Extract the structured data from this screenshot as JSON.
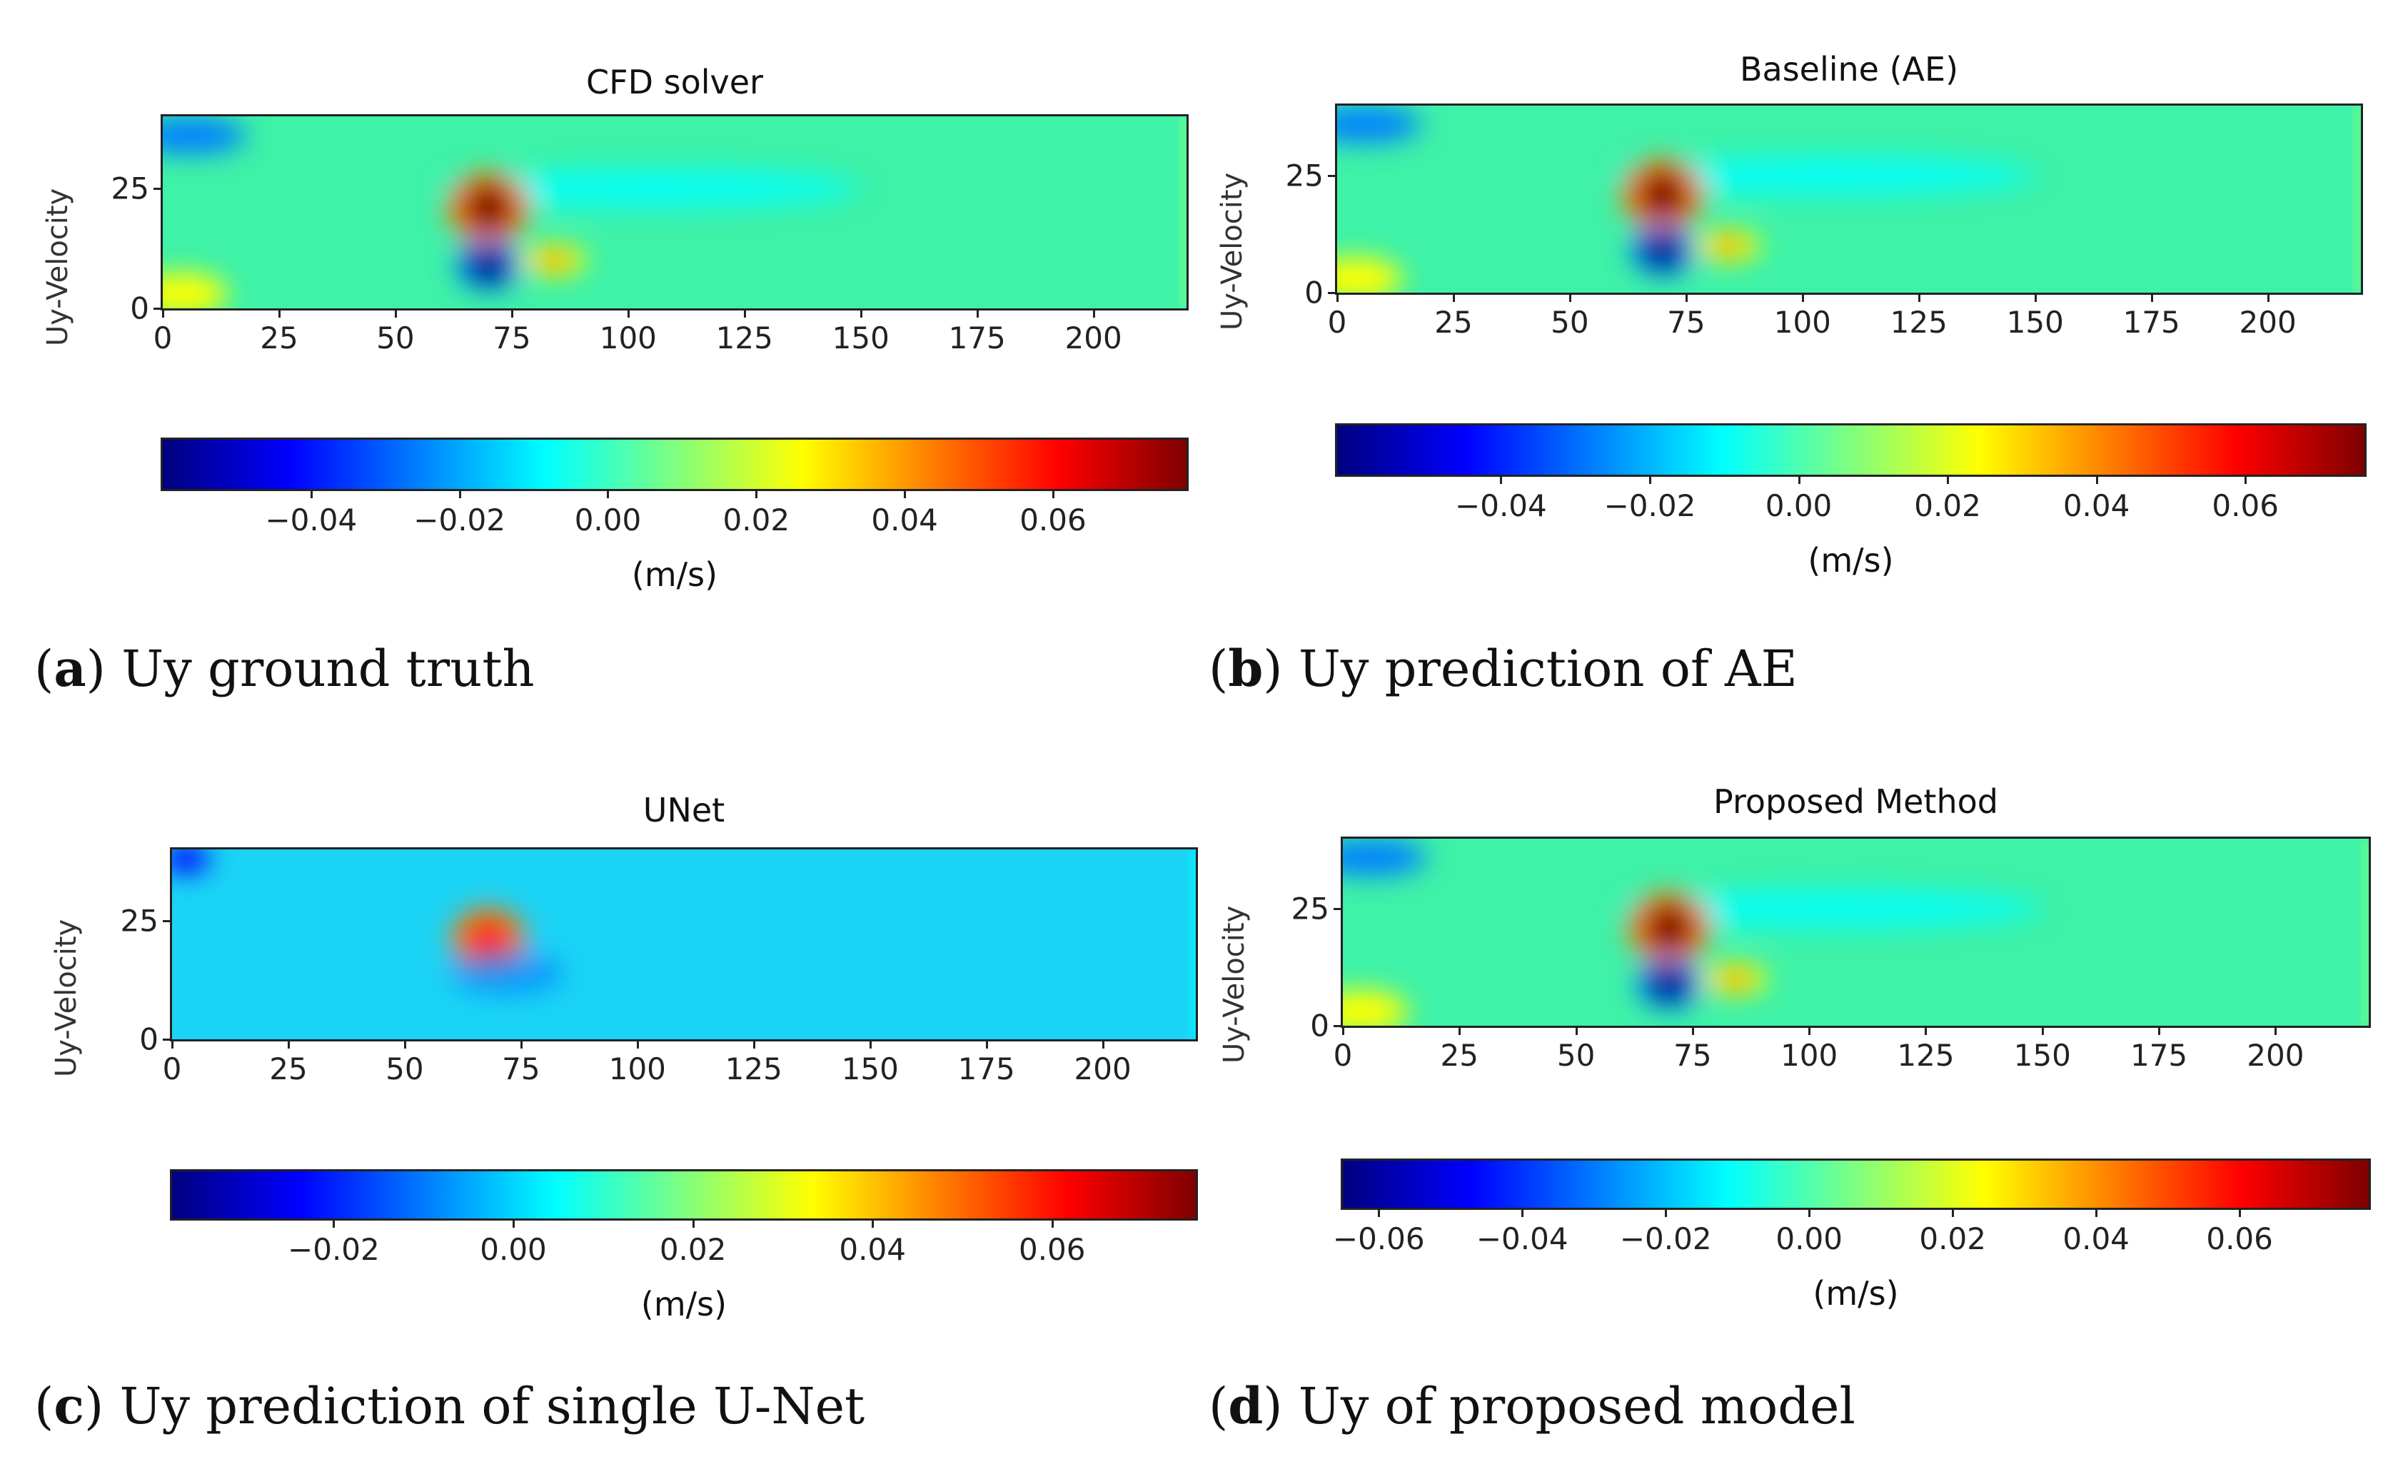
{
  "colors": {
    "jet": [
      "#00007f",
      "#0000ff",
      "#007fff",
      "#00ffff",
      "#7fff7f",
      "#ffff00",
      "#ff7f00",
      "#ff0000",
      "#7f0000"
    ],
    "field_background": "#3ef2a8",
    "unet_background": "#1ad3f5"
  },
  "panels": [
    {
      "id": "a",
      "caption_letter": "a",
      "caption_text": " Uy ground truth",
      "chart_data": {
        "type": "heatmap",
        "title": "CFD solver",
        "ylabel": "Uy-Velocity",
        "xlim": [
          0,
          220
        ],
        "ylim": [
          0,
          40
        ],
        "x_ticks": [
          "0",
          "25",
          "50",
          "75",
          "100",
          "125",
          "150",
          "175",
          "200"
        ],
        "y_ticks": [
          "0",
          "25"
        ],
        "colorbar_ticks": [
          "−0.04",
          "−0.02",
          "0.00",
          "0.02",
          "0.04",
          "0.06"
        ],
        "colorbar_label": "(m/s)",
        "colorbar_range": [
          -0.06,
          0.078
        ]
      }
    },
    {
      "id": "b",
      "caption_letter": "b",
      "caption_text": " Uy prediction of AE",
      "chart_data": {
        "type": "heatmap",
        "title": "Baseline (AE)",
        "ylabel": "Uy-Velocity",
        "xlim": [
          0,
          220
        ],
        "ylim": [
          0,
          40
        ],
        "x_ticks": [
          "0",
          "25",
          "50",
          "75",
          "100",
          "125",
          "150",
          "175",
          "200"
        ],
        "y_ticks": [
          "0",
          "25"
        ],
        "colorbar_ticks": [
          "−0.04",
          "−0.02",
          "0.00",
          "0.02",
          "0.04",
          "0.06"
        ],
        "colorbar_label": "(m/s)",
        "colorbar_range": [
          -0.062,
          0.076
        ]
      }
    },
    {
      "id": "c",
      "caption_letter": "c",
      "caption_text": " Uy prediction of single U-Net",
      "chart_data": {
        "type": "heatmap",
        "title": "UNet",
        "ylabel": "Uy-Velocity",
        "xlim": [
          0,
          220
        ],
        "ylim": [
          0,
          40
        ],
        "x_ticks": [
          "0",
          "25",
          "50",
          "75",
          "100",
          "125",
          "150",
          "175",
          "200"
        ],
        "y_ticks": [
          "0",
          "25"
        ],
        "colorbar_ticks": [
          "−0.02",
          "0.00",
          "0.02",
          "0.04",
          "0.06"
        ],
        "colorbar_label": "(m/s)",
        "colorbar_range": [
          -0.038,
          0.076
        ]
      }
    },
    {
      "id": "d",
      "caption_letter": "d",
      "caption_text": " Uy of proposed model",
      "chart_data": {
        "type": "heatmap",
        "title": "Proposed Method",
        "ylabel": "Uy-Velocity",
        "xlim": [
          0,
          220
        ],
        "ylim": [
          0,
          40
        ],
        "x_ticks": [
          "0",
          "25",
          "50",
          "75",
          "100",
          "125",
          "150",
          "175",
          "200"
        ],
        "y_ticks": [
          "0",
          "25"
        ],
        "colorbar_ticks": [
          "−0.06",
          "−0.04",
          "−0.02",
          "0.00",
          "0.02",
          "0.04",
          "0.06"
        ],
        "colorbar_label": "(m/s)",
        "colorbar_range": [
          -0.065,
          0.078
        ]
      }
    }
  ]
}
